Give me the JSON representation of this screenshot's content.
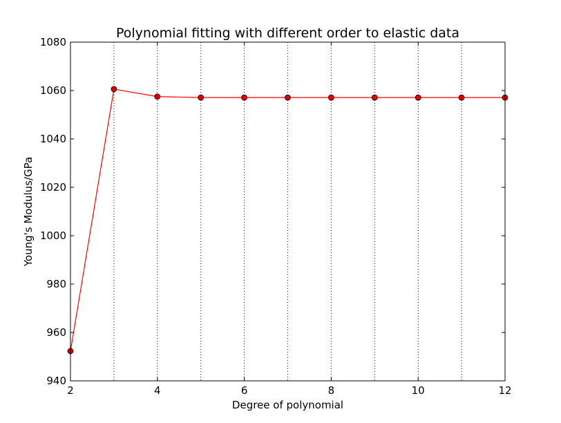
{
  "chart_data": {
    "type": "line",
    "title": "Polynomial fitting with different order to elastic data",
    "xlabel": "Degree of polynomial",
    "ylabel": "Young's Modulus/GPa",
    "xlim": [
      2,
      12
    ],
    "ylim": [
      940,
      1080
    ],
    "xticks": [
      2,
      4,
      6,
      8,
      10,
      12
    ],
    "yticks": [
      940,
      960,
      980,
      1000,
      1020,
      1040,
      1060,
      1080
    ],
    "grid": "vertical dotted lines at each degree",
    "series": [
      {
        "x": [
          2,
          3,
          4,
          5,
          6,
          7,
          8,
          9,
          10,
          11,
          12
        ],
        "y": [
          952.3,
          1060.6,
          1057.5,
          1057.1,
          1057.1,
          1057.1,
          1057.1,
          1057.1,
          1057.1,
          1057.1,
          1057.1
        ],
        "line_color": "#ff0000",
        "marker_color": "#dd0000",
        "marker": "circle"
      }
    ]
  }
}
